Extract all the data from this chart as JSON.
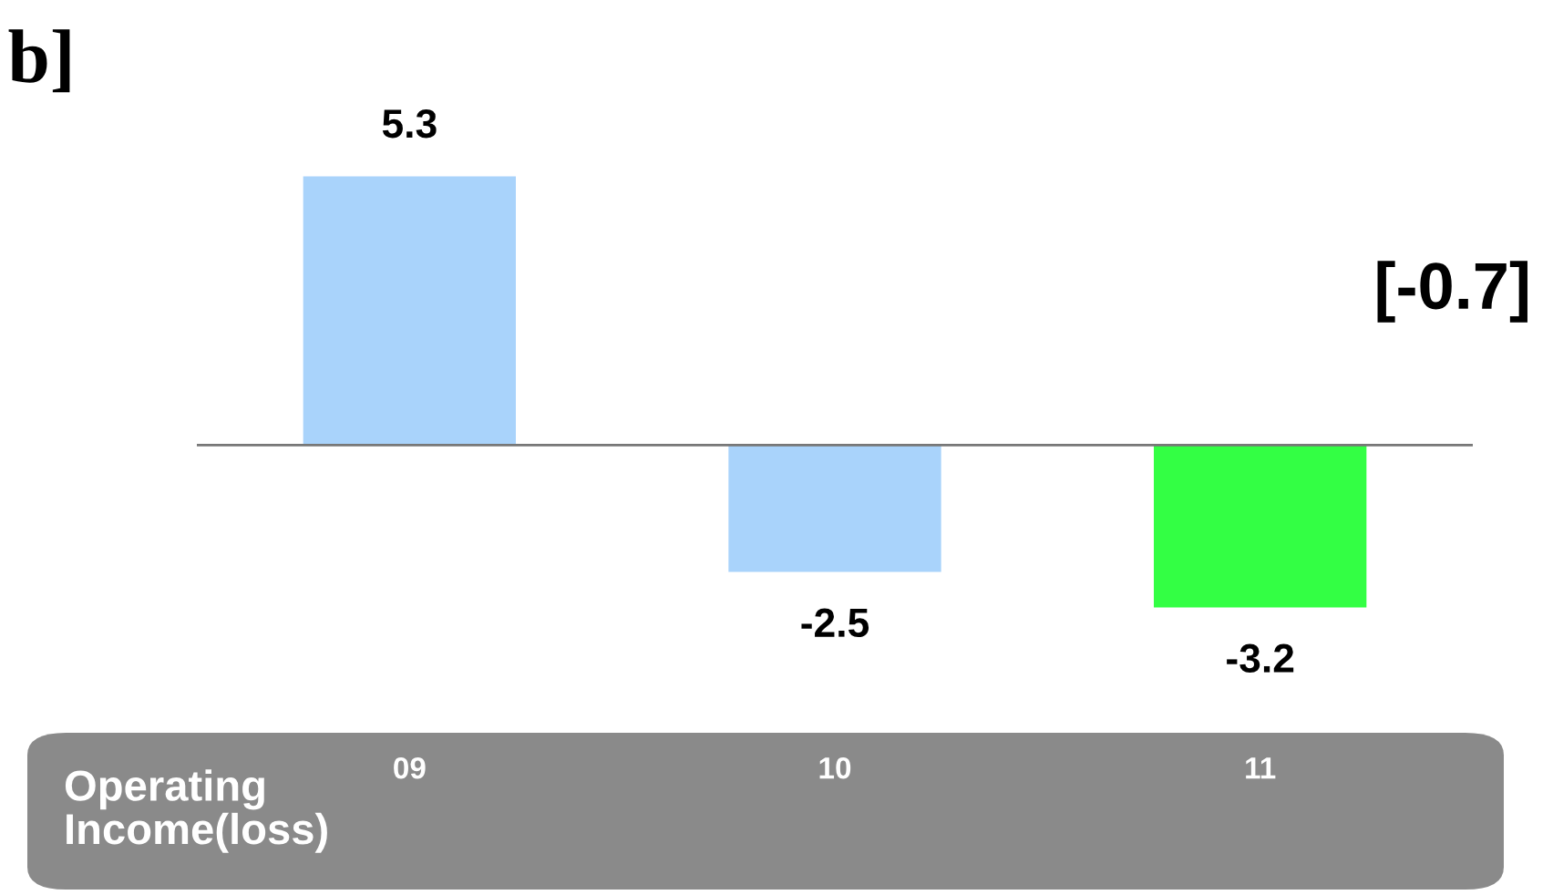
{
  "chart_data": {
    "type": "bar",
    "title": "b]",
    "xlabel": "Operating\nIncome(loss)",
    "categories": [
      "09",
      "10",
      "11"
    ],
    "values": [
      5.3,
      -2.5,
      -3.2
    ],
    "colors": [
      "#a9d3fb",
      "#a9d3fb",
      "#33ff44"
    ],
    "data_labels": true,
    "grid": false,
    "legend": false,
    "annotations": [
      "[-0.7]"
    ]
  }
}
